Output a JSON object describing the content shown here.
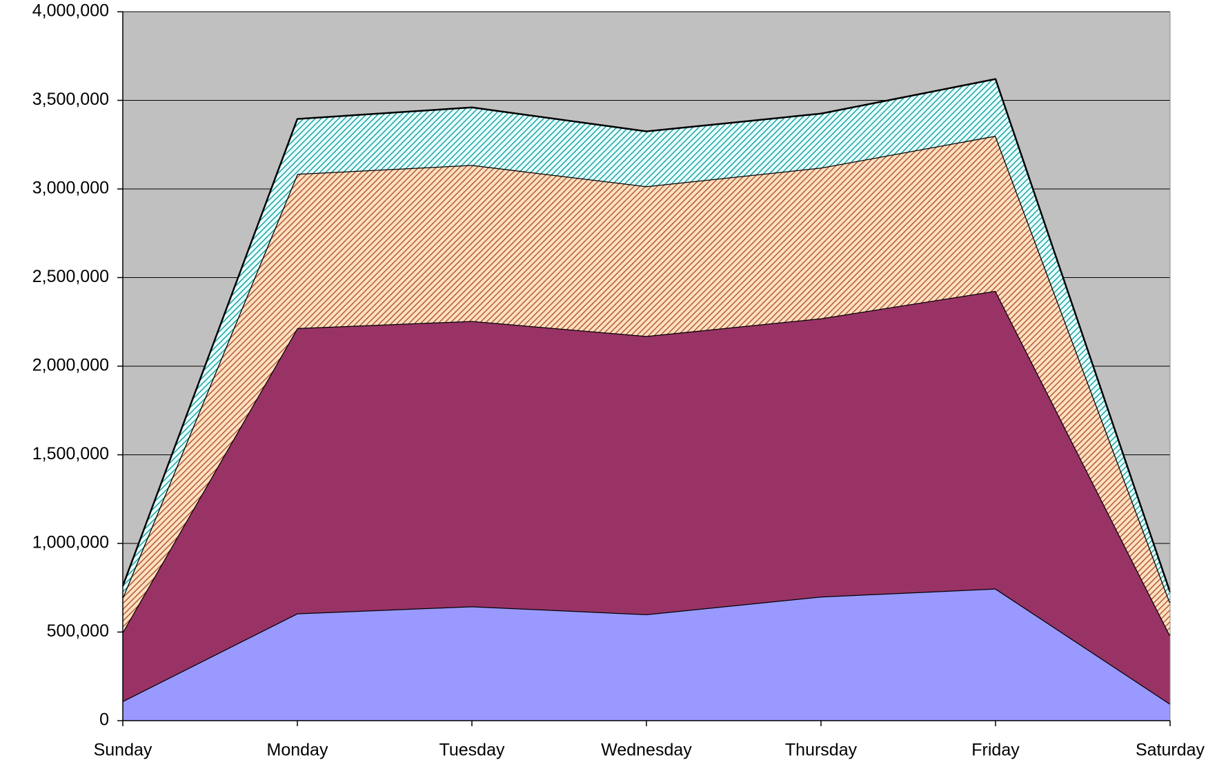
{
  "chart_data": {
    "type": "stacked_area",
    "categories": [
      "Sunday",
      "Monday",
      "Tuesday",
      "Wednesday",
      "Thursday",
      "Friday",
      "Saturday"
    ],
    "series": [
      {
        "color": "#9999ff",
        "values": [
          110000,
          605000,
          645000,
          600000,
          700000,
          745000,
          95000
        ]
      },
      {
        "color": "#993366",
        "values": [
          390000,
          1610000,
          1610000,
          1570000,
          1570000,
          1680000,
          385000
        ]
      },
      {
        "color": "#ffe0c0",
        "hatch_color": "#b05a3a",
        "values": [
          195000,
          870000,
          880000,
          845000,
          850000,
          875000,
          185000
        ]
      },
      {
        "color": "#e8ffff",
        "hatch_color": "#20a0a0",
        "values": [
          65000,
          310000,
          325000,
          310000,
          305000,
          320000,
          60000
        ]
      }
    ],
    "ylim": [
      0,
      4000000
    ],
    "yticks": [
      0,
      {
        "value": 500000,
        "label": "500,000"
      },
      {
        "value": 1000000,
        "label": "1,000,000"
      },
      {
        "value": 1500000,
        "label": "1,500,000"
      },
      {
        "value": 2000000,
        "label": "2,000,000"
      },
      {
        "value": 2500000,
        "label": "2,500,000"
      },
      {
        "value": 3000000,
        "label": "3,000,000"
      },
      {
        "value": 3500000,
        "label": "3,500,000"
      },
      {
        "value": 4000000,
        "label": "4,000,000"
      }
    ],
    "grid": true,
    "plot_background": "#c0c0c0"
  }
}
